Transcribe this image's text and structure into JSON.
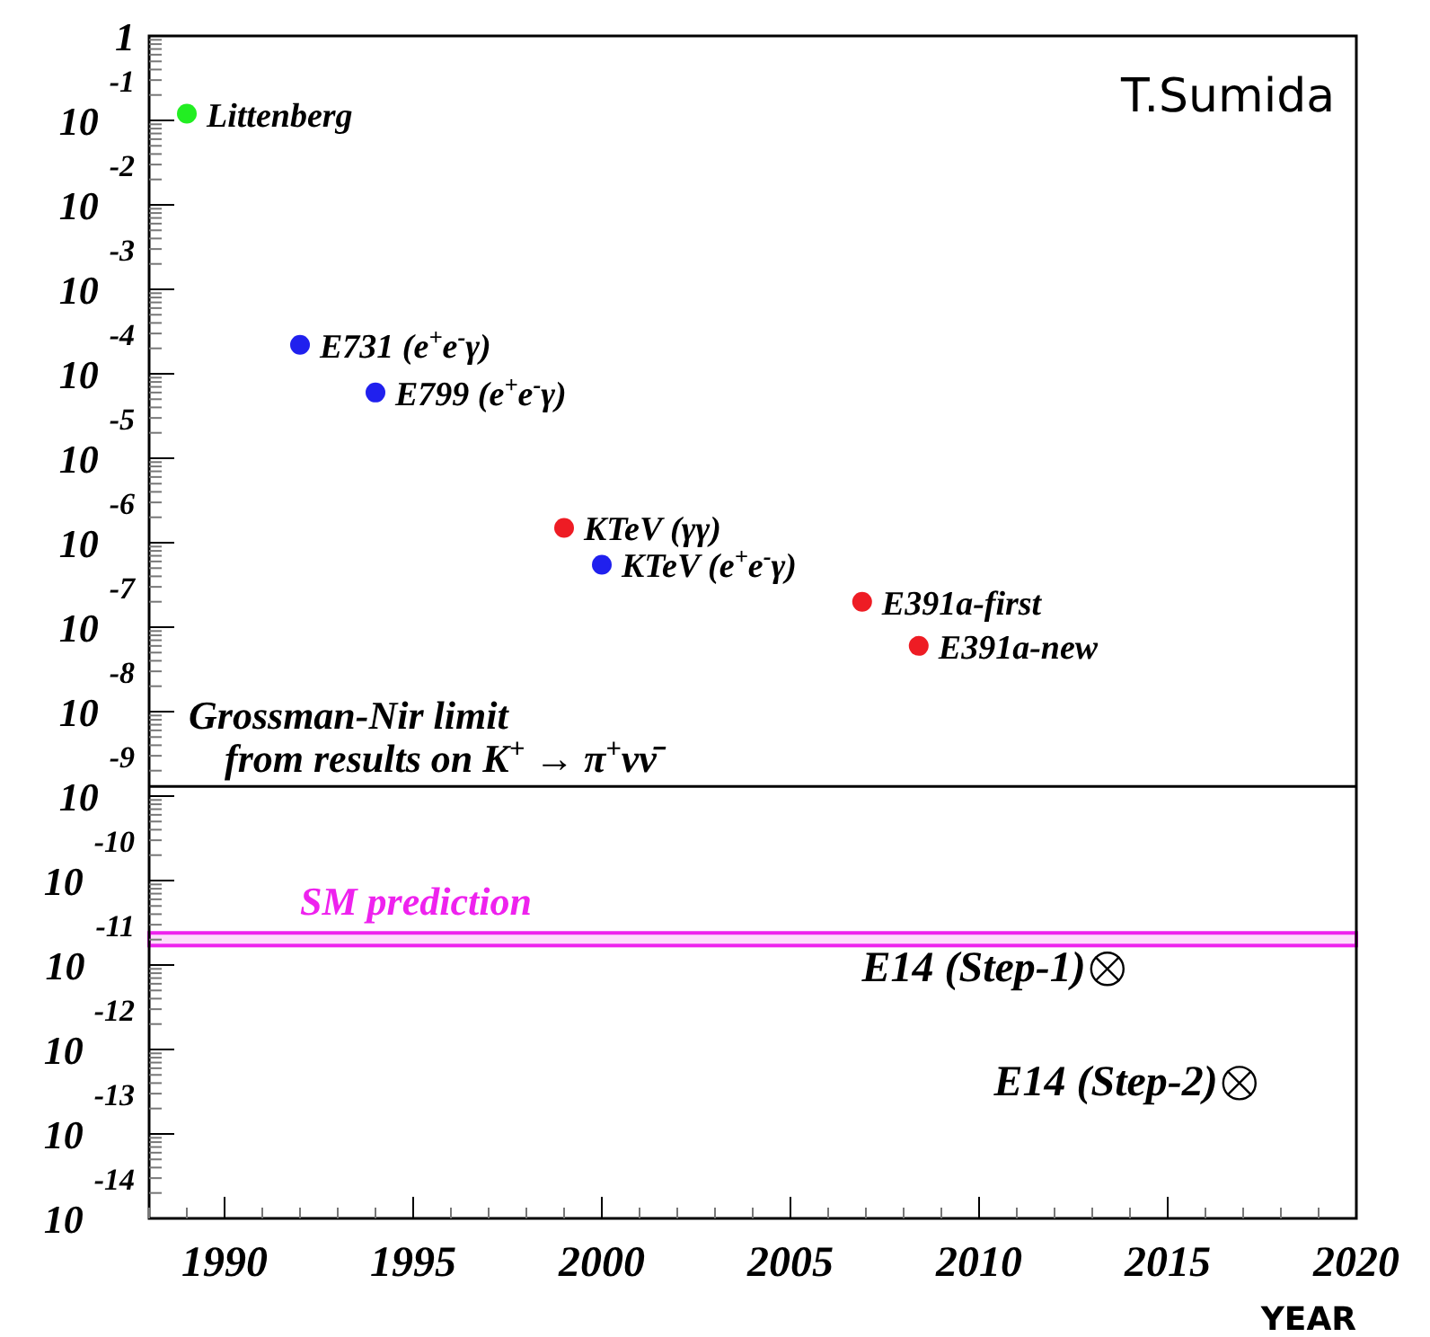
{
  "chart_data": {
    "type": "scatter",
    "xlabel": "YEAR",
    "log": "y",
    "xlim": [
      1988,
      2020
    ],
    "xticks": [
      1990,
      1995,
      2000,
      2005,
      2010,
      2015,
      2020
    ],
    "ylim": [
      1e-14,
      1
    ],
    "yticks": [
      1,
      {
        "value": 0.1,
        "label": "10$^{-1}$"
      },
      {
        "value": 0.01,
        "label": "10$^{-2}$"
      },
      {
        "value": 0.001,
        "label": "10$^{-3}$"
      },
      {
        "value": 0.0001,
        "label": "10$^{-4}$"
      },
      {
        "value": 1e-05,
        "label": "10$^{-5}$"
      },
      {
        "value": 1e-06,
        "label": "10$^{-6}$"
      },
      {
        "value": 1e-07,
        "label": "10$^{-7}$"
      },
      {
        "value": 1e-08,
        "label": "10$^{-8}$"
      },
      {
        "value": 1e-09,
        "label": "10$^{-9}$"
      },
      {
        "value": 1e-10,
        "label": "10$^{-10}$"
      },
      {
        "value": 1e-11,
        "label": "10$^{-11}$"
      },
      {
        "value": 1e-12,
        "label": "10$^{-12}$"
      },
      {
        "value": 1e-13,
        "label": "10$^{-13}$"
      },
      {
        "value": 1e-14,
        "label": "10$^{-14}$"
      }
    ],
    "grid": false,
    "legend": false,
    "series": [
      {
        "name": "Littenberg",
        "color": "#22ee22",
        "marker": "circle",
        "x": [
          1989
        ],
        "values": [
          0.12
        ]
      },
      {
        "name": "E731 (e$^{+}$e$^{-}$γ)",
        "color": "#2020ee",
        "marker": "circle",
        "x": [
          1992
        ],
        "values": [
          0.00022
        ]
      },
      {
        "name": "E799 (e$^{+}$e$^{-}$γ)",
        "color": "#2020ee",
        "marker": "circle",
        "x": [
          1994
        ],
        "values": [
          6e-05
        ]
      },
      {
        "name": "KTeV (γγ)",
        "color": "#ee1c24",
        "marker": "circle",
        "x": [
          1999
        ],
        "values": [
          1.5e-06
        ]
      },
      {
        "name": "KTeV (e$^{+}$e$^{-}$γ)",
        "color": "#2020ee",
        "marker": "circle",
        "x": [
          2000
        ],
        "values": [
          5.5e-07
        ]
      },
      {
        "name": "E391a-first",
        "color": "#ee1c24",
        "marker": "circle",
        "x": [
          2006.9
        ],
        "values": [
          2e-07
        ]
      },
      {
        "name": "E391a-new",
        "color": "#ee1c24",
        "marker": "circle",
        "x": [
          2008.4
        ],
        "values": [
          6e-08
        ]
      },
      {
        "name": "E14 (Step-1)",
        "color": "#000000",
        "x": [
          2013.4
        ],
        "values": [
          9e-12
        ]
      },
      {
        "name": "E14 (Step-2)",
        "color": "#000000",
        "x": [
          2016.9
        ],
        "values": [
          4e-13
        ]
      }
    ],
    "ref_lines": [
      {
        "axis": "y",
        "value": 1.3e-09,
        "label": "Grossman-Nir limit\nfrom results on K$^{+}$ → π$^{+}$νν̄",
        "color": "#000000"
      }
    ],
    "bands": [
      {
        "axis": "y",
        "from": 1.7e-11,
        "to": 2.4e-11,
        "label": "SM prediction",
        "color": "#ee22ee"
      }
    ],
    "annotations": [
      "T.Sumida"
    ]
  }
}
